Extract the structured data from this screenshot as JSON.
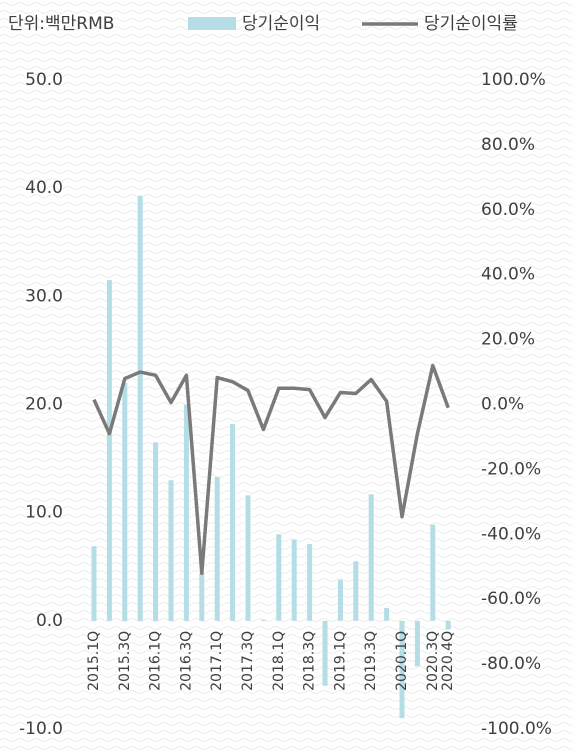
{
  "chart_data": {
    "type": "bar_line",
    "unit_label": "단위:백만RMB",
    "categories": [
      "2015.1Q",
      null,
      "2015.3Q",
      null,
      "2016.1Q",
      null,
      "2016.3Q",
      null,
      "2017.1Q",
      null,
      "2017.3Q",
      null,
      "2018.1Q",
      null,
      "2018.3Q",
      null,
      "2019.1Q",
      null,
      "2019.3Q",
      null,
      "2020.1Q",
      null,
      "2020.3Q",
      "2020.4Q"
    ],
    "series": [
      {
        "name": "당기순이익",
        "type": "bar",
        "color": "#b4dde6",
        "values": [
          6.9,
          31.5,
          22,
          39.3,
          16.5,
          13.0,
          20,
          4.4,
          13.3,
          18.2,
          11.6,
          0.1,
          8.0,
          7.5,
          7.1,
          -6.0,
          3.8,
          5.5,
          11.7,
          1.2,
          -9.0,
          -4.2,
          8.9,
          -0.8
        ]
      },
      {
        "name": "당기순이익률",
        "type": "line",
        "axis": "y2",
        "color": "#7a7a7a",
        "values": [
          1.5,
          -9,
          8,
          10,
          9,
          0.6,
          9,
          -52,
          8.3,
          7,
          4.3,
          -7.7,
          5,
          5,
          4.6,
          -4,
          3.7,
          3.4,
          7.7,
          1,
          -34.6,
          -9,
          12,
          -1
        ]
      }
    ],
    "ylim": [
      -10,
      50
    ],
    "yticks": [
      {
        "value": -10,
        "label": "-10.0"
      },
      {
        "value": 0,
        "label": "0.0"
      },
      {
        "value": 10,
        "label": "10.0"
      },
      {
        "value": 20,
        "label": "20.0"
      },
      {
        "value": 30,
        "label": "30.0"
      },
      {
        "value": 40,
        "label": "40.0"
      },
      {
        "value": 50,
        "label": "50.0"
      }
    ],
    "y2lim": [
      -100,
      100
    ],
    "y2ticks": [
      {
        "value": -100,
        "label": "-100.0%"
      },
      {
        "value": -80,
        "label": "-80.0%"
      },
      {
        "value": -60,
        "label": "-60.0%"
      },
      {
        "value": -40,
        "label": "-40.0%"
      },
      {
        "value": -20,
        "label": "-20.0%"
      },
      {
        "value": 0,
        "label": "0.0%"
      },
      {
        "value": 20,
        "label": "20.0%"
      },
      {
        "value": 40,
        "label": "40.0%"
      },
      {
        "value": 60,
        "label": "60.0%"
      },
      {
        "value": 80,
        "label": "80.0%"
      },
      {
        "value": 100,
        "label": "100.0%"
      }
    ],
    "legend": "top"
  }
}
